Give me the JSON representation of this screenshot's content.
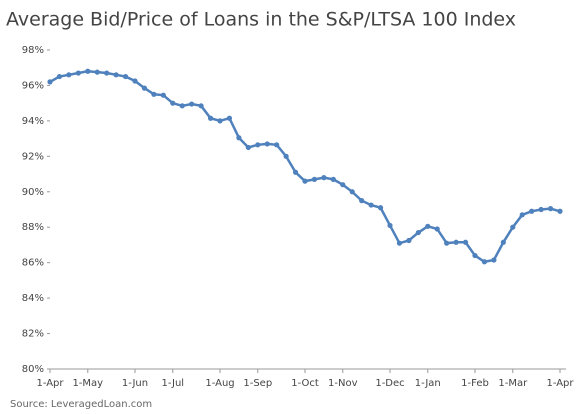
{
  "chart_data": {
    "type": "line",
    "title": "Average Bid/Price of Loans in the S&P/LTSA 100 Index",
    "source": "Source: LeveragedLoan.com",
    "categories": [
      "1-Apr",
      null,
      null,
      null,
      "1-May",
      null,
      null,
      null,
      null,
      "1-Jun",
      null,
      null,
      null,
      "1-Jul",
      null,
      null,
      null,
      null,
      "1-Aug",
      null,
      null,
      null,
      "1-Sep",
      null,
      null,
      null,
      null,
      "1-Oct",
      null,
      null,
      null,
      "1-Nov",
      null,
      null,
      null,
      null,
      "1-Dec",
      null,
      null,
      null,
      "1-Jan",
      null,
      null,
      null,
      null,
      "1-Feb",
      null,
      null,
      null,
      "1-Mar",
      null,
      null,
      null,
      null,
      "1-Apr"
    ],
    "series": [
      {
        "name": "Average Bid/Price",
        "color": "#4f81bd",
        "values": [
          96.2,
          96.5,
          96.6,
          96.7,
          96.8,
          96.75,
          96.7,
          96.6,
          96.5,
          96.25,
          95.85,
          95.5,
          95.45,
          95.0,
          94.85,
          94.95,
          94.85,
          94.15,
          94.0,
          94.15,
          93.05,
          92.5,
          92.65,
          92.7,
          92.65,
          92.0,
          91.1,
          90.6,
          90.7,
          90.8,
          90.7,
          90.4,
          90.0,
          89.5,
          89.25,
          89.1,
          88.1,
          87.1,
          87.25,
          87.7,
          88.05,
          87.9,
          87.1,
          87.15,
          87.15,
          86.4,
          86.05,
          86.15,
          87.15,
          88.0,
          88.7,
          88.9,
          89.0,
          89.05,
          88.9
        ]
      }
    ],
    "ylim": [
      80,
      98
    ],
    "yticks": [
      {
        "value": 80,
        "label": "80%"
      },
      {
        "value": 82,
        "label": "82%"
      },
      {
        "value": 84,
        "label": "84%"
      },
      {
        "value": 86,
        "label": "86%"
      },
      {
        "value": 88,
        "label": "88%"
      },
      {
        "value": 90,
        "label": "90%"
      },
      {
        "value": 92,
        "label": "92%"
      },
      {
        "value": 94,
        "label": "94%"
      },
      {
        "value": 96,
        "label": "96%"
      },
      {
        "value": 98,
        "label": "98%"
      }
    ],
    "grid": false
  }
}
